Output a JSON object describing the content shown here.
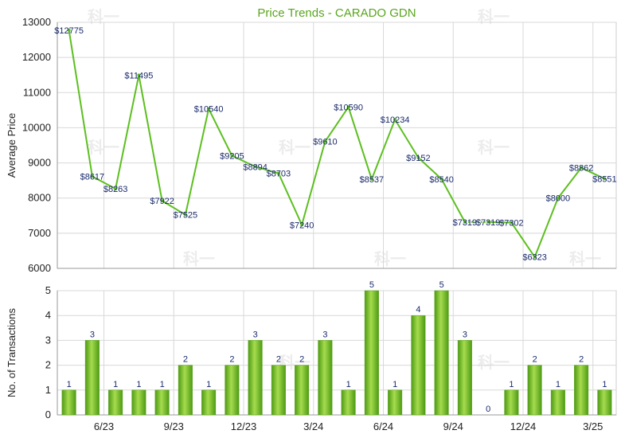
{
  "chart_data": [
    {
      "type": "line",
      "title": "Price Trends - CARADO GDN",
      "ylabel": "Average Price",
      "ylim": [
        6000,
        13000
      ],
      "yticks": [
        6000,
        7000,
        8000,
        9000,
        10000,
        11000,
        12000,
        13000
      ],
      "grid": true,
      "colors": {
        "line": "#5cbf1e",
        "label": "#1a2a6c"
      },
      "points": [
        {
          "x": 1,
          "y": 12775,
          "label": "$12775"
        },
        {
          "x": 2,
          "y": 8617,
          "label": "$8617"
        },
        {
          "x": 3,
          "y": 8263,
          "label": "$8263"
        },
        {
          "x": 4,
          "y": 11495,
          "label": "$11495"
        },
        {
          "x": 5,
          "y": 7922,
          "label": "$7922"
        },
        {
          "x": 6,
          "y": 7525,
          "label": "$7525"
        },
        {
          "x": 7,
          "y": 10540,
          "label": "$10540"
        },
        {
          "x": 8,
          "y": 9205,
          "label": "$9205"
        },
        {
          "x": 9,
          "y": 8894,
          "label": "$8894"
        },
        {
          "x": 10,
          "y": 8703,
          "label": "$8703"
        },
        {
          "x": 11,
          "y": 7240,
          "label": "$7240"
        },
        {
          "x": 12,
          "y": 9610,
          "label": "$9610"
        },
        {
          "x": 13,
          "y": 10590,
          "label": "$10590"
        },
        {
          "x": 14,
          "y": 8537,
          "label": "$8537"
        },
        {
          "x": 15,
          "y": 10234,
          "label": "$10234"
        },
        {
          "x": 16,
          "y": 9152,
          "label": "$9152"
        },
        {
          "x": 17,
          "y": 8540,
          "label": "$8540"
        },
        {
          "x": 18,
          "y": 7319,
          "label": "$7319"
        },
        {
          "x": 19,
          "y": 7319,
          "label": "$7319"
        },
        {
          "x": 20,
          "y": 7302,
          "label": "$7302"
        },
        {
          "x": 21,
          "y": 6323,
          "label": "$6323"
        },
        {
          "x": 22,
          "y": 8000,
          "label": "$8000"
        },
        {
          "x": 23,
          "y": 8862,
          "label": "$8862"
        },
        {
          "x": 24,
          "y": 8551,
          "label": "$8551"
        }
      ]
    },
    {
      "type": "bar",
      "ylabel": "No. of Transactions",
      "ylim": [
        0,
        5
      ],
      "yticks": [
        0,
        1,
        2,
        3,
        4,
        5
      ],
      "grid": true,
      "colors": {
        "bar_light": "#a6dc4e",
        "bar_dark": "#4e9a14"
      },
      "categories": [
        "",
        "6/23",
        "",
        "",
        "9/23",
        "",
        "",
        "12/23",
        "",
        "",
        "3/24",
        "",
        "",
        "6/24",
        "",
        "",
        "9/24",
        "",
        "",
        "12/24",
        "",
        "",
        "3/25",
        ""
      ],
      "values": [
        1,
        3,
        1,
        1,
        1,
        2,
        1,
        2,
        3,
        2,
        2,
        3,
        1,
        5,
        1,
        4,
        5,
        3,
        0,
        1,
        2,
        1,
        2,
        1
      ]
    }
  ],
  "watermark": "科一"
}
